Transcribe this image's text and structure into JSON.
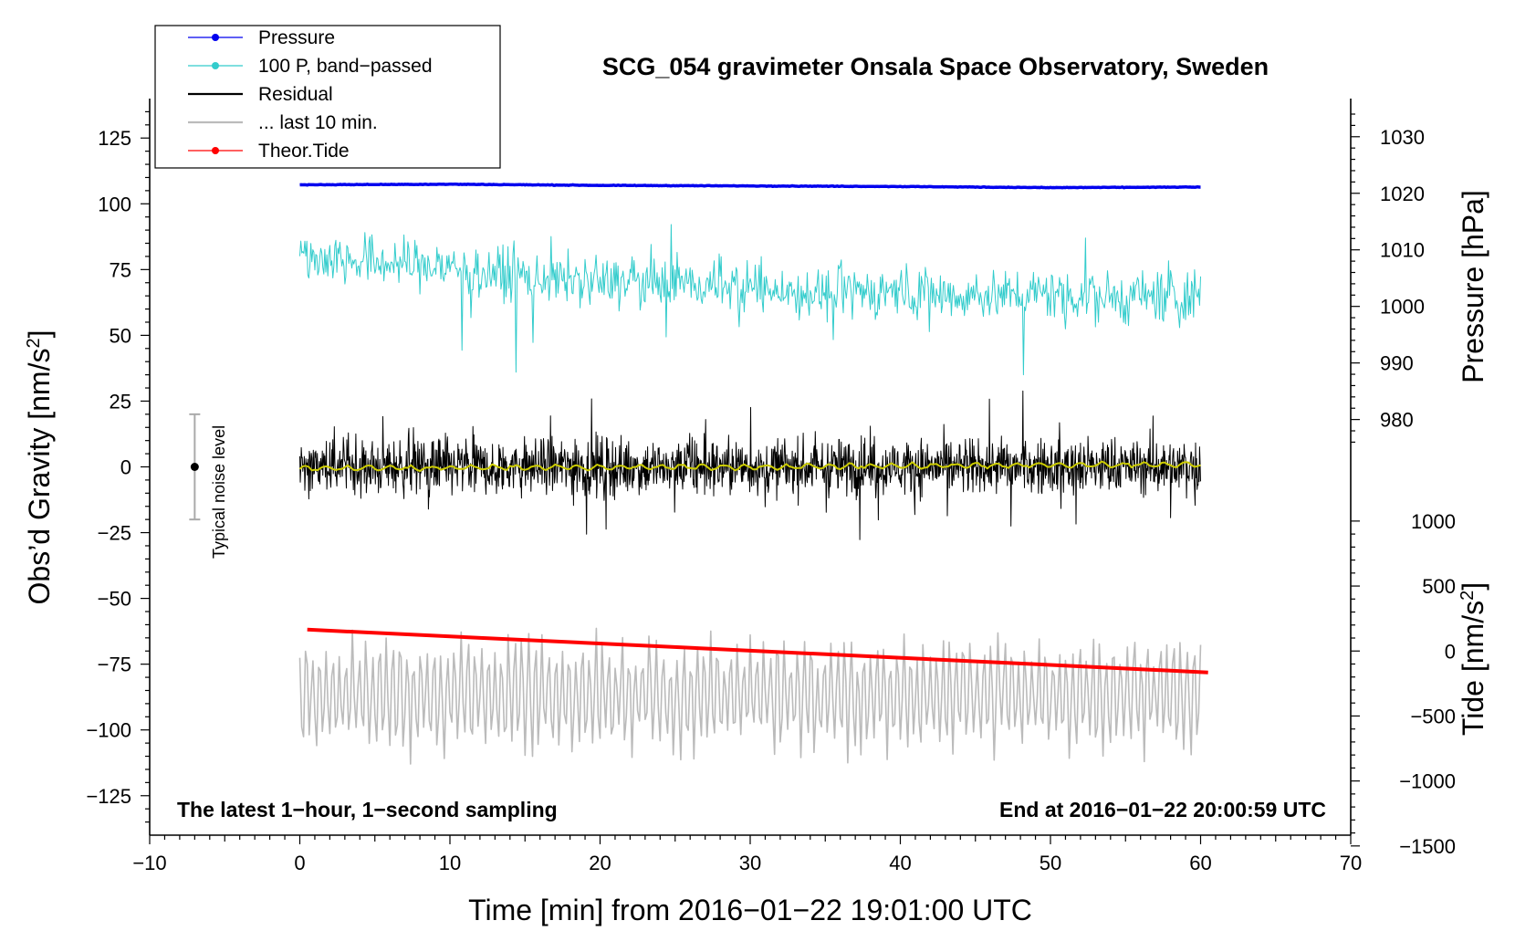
{
  "chart_data": {
    "type": "line",
    "title": "SCG_054 gravimeter Onsala Space Observatory, Sweden",
    "xlabel": "Time [min] from 2016−01−22 19:01:00 UTC",
    "xlim": [
      -10,
      70
    ],
    "x_ticks": [
      "−10",
      "0",
      "10",
      "20",
      "30",
      "40",
      "50",
      "60",
      "70"
    ],
    "left_axis": {
      "label": "Obs’d Gravity [nm/s",
      "label_sup": "2",
      "label_end": "]",
      "ylim": [
        -140,
        140
      ],
      "ticks": [
        {
          "v": 125,
          "t": "125"
        },
        {
          "v": 100,
          "t": "100"
        },
        {
          "v": 75,
          "t": "75"
        },
        {
          "v": 50,
          "t": "50"
        },
        {
          "v": 25,
          "t": "25"
        },
        {
          "v": 0,
          "t": "0"
        },
        {
          "v": -25,
          "t": "−25"
        },
        {
          "v": -50,
          "t": "−50"
        },
        {
          "v": -75,
          "t": "−75"
        },
        {
          "v": -100,
          "t": "−100"
        },
        {
          "v": -125,
          "t": "−125"
        }
      ]
    },
    "pressure_axis": {
      "label": "Pressure [hPa]",
      "ticks": [
        {
          "v": 1030,
          "t": "1030"
        },
        {
          "v": 1020,
          "t": "1020"
        },
        {
          "v": 1010,
          "t": "1010"
        },
        {
          "v": 1000,
          "t": "1000"
        },
        {
          "v": 990,
          "t": "990"
        },
        {
          "v": 980,
          "t": "980"
        }
      ],
      "g_at_1030": 125.5,
      "g_per_hpa": 2.15
    },
    "tide_axis": {
      "label": "Tide [nm/s",
      "label_sup": "2",
      "label_end": "]",
      "ticks": [
        {
          "v": 1000,
          "t": "1000"
        },
        {
          "v": 500,
          "t": "500"
        },
        {
          "v": 0,
          "t": "0"
        },
        {
          "v": -500,
          "t": "−500"
        },
        {
          "v": -1000,
          "t": "−1000"
        },
        {
          "v": -1500,
          "t": "−1500"
        }
      ],
      "g_at_0": -70,
      "g_per_unit": 0.0494
    },
    "series": [
      {
        "name": "Pressure",
        "color": "#0000ee",
        "axis": "pressure",
        "x": [
          0,
          10,
          20,
          30,
          40,
          50,
          60
        ],
        "values": [
          1021.5,
          1021.6,
          1021.4,
          1021.3,
          1021.2,
          1021.0,
          1021.1
        ]
      },
      {
        "name": "100 P, band−passed",
        "color": "#33cccc",
        "axis": "gravity",
        "x": [
          0,
          5,
          10,
          15,
          20,
          25,
          30,
          35,
          40,
          45,
          50,
          55,
          60
        ],
        "values": [
          80,
          78,
          76,
          72,
          70,
          71,
          68,
          66,
          67,
          65,
          66,
          64,
          66
        ],
        "amplitude": 12
      },
      {
        "name": "Residual",
        "color": "#000000",
        "axis": "gravity",
        "x": [
          0,
          60
        ],
        "values": [
          0,
          0
        ],
        "amplitude": 14
      },
      {
        "name": "... last 10 min.",
        "color": "#bbbbbb",
        "axis": "gravity",
        "x": [
          0,
          60
        ],
        "values": [
          -87,
          -87
        ],
        "amplitude": 18
      },
      {
        "name": "Theor.Tide",
        "color": "#ff0000",
        "axis": "tide",
        "x": [
          0.5,
          60.5
        ],
        "values": [
          165,
          -165
        ]
      },
      {
        "name": "Residual (smoothed)",
        "color": "#cccc00",
        "axis": "gravity",
        "x": [
          0,
          30,
          60
        ],
        "values": [
          -0.5,
          0,
          1
        ],
        "legend": false
      }
    ],
    "noise_marker": {
      "x": -7,
      "center": 0,
      "low": -20,
      "high": 20,
      "label": "Typical noise level"
    },
    "annotations": {
      "left": "The latest 1−hour, 1−second sampling",
      "right": "End at 2016−01−22 20:00:59 UTC"
    }
  }
}
